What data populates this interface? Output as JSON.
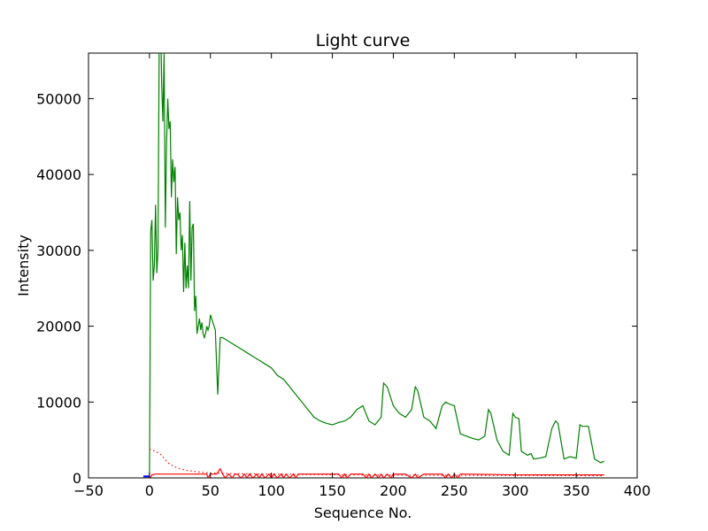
{
  "chart_data": {
    "type": "line",
    "title": "Light curve",
    "xlabel": "Sequence No.",
    "ylabel": "Intensity",
    "xlim": [
      -50,
      400
    ],
    "ylim": [
      0,
      56000
    ],
    "x_ticks": [
      -50,
      0,
      50,
      100,
      150,
      200,
      250,
      300,
      350,
      400
    ],
    "y_ticks": [
      0,
      10000,
      20000,
      30000,
      40000,
      50000
    ],
    "grid": false,
    "legend": "none",
    "series": [
      {
        "color": "#008000",
        "style": "solid",
        "x": [
          0,
          1,
          2,
          3,
          4,
          5,
          6,
          7,
          8,
          9,
          10,
          11,
          12,
          13,
          14,
          15,
          16,
          17,
          18,
          19,
          20,
          21,
          22,
          23,
          24,
          25,
          26,
          27,
          28,
          29,
          30,
          31,
          32,
          33,
          34,
          35,
          36,
          37,
          38,
          39,
          40,
          41,
          42,
          43,
          44,
          45,
          46,
          47,
          48,
          49,
          50,
          52,
          54,
          56,
          58,
          60,
          65,
          70,
          75,
          80,
          85,
          90,
          95,
          100,
          105,
          110,
          115,
          120,
          125,
          130,
          135,
          140,
          145,
          150,
          155,
          160,
          165,
          170,
          175,
          180,
          185,
          190,
          192,
          195,
          198,
          200,
          205,
          210,
          215,
          218,
          220,
          225,
          230,
          235,
          240,
          243,
          245,
          250,
          255,
          260,
          265,
          270,
          275,
          278,
          280,
          285,
          290,
          295,
          298,
          300,
          303,
          305,
          310,
          313,
          315,
          320,
          325,
          330,
          333,
          335,
          340,
          345,
          350,
          353,
          355,
          360,
          365,
          370,
          373
        ],
        "values": [
          0,
          32500,
          34000,
          26000,
          28000,
          36000,
          27000,
          30000,
          58000,
          62000,
          52000,
          47000,
          56000,
          33000,
          44000,
          50000,
          46000,
          47000,
          37000,
          42000,
          39000,
          41000,
          29500,
          37000,
          34000,
          35000,
          30000,
          32000,
          24500,
          31000,
          25000,
          28000,
          25000,
          36500,
          26000,
          33000,
          33500,
          22000,
          24000,
          19000,
          20000,
          21000,
          19500,
          20500,
          19000,
          18500,
          19000,
          20000,
          19500,
          20000,
          21500,
          20500,
          19500,
          11000,
          18500,
          18500,
          18000,
          17500,
          17000,
          16500,
          16000,
          15500,
          15000,
          14500,
          13500,
          13000,
          12000,
          11000,
          10000,
          9000,
          8000,
          7500,
          7200,
          7000,
          7300,
          7500,
          8000,
          9000,
          9500,
          7500,
          7000,
          8000,
          12500,
          12000,
          10500,
          9500,
          8500,
          8000,
          9000,
          12000,
          11500,
          8000,
          7500,
          6500,
          9500,
          10000,
          9800,
          9500,
          5800,
          5500,
          5200,
          5000,
          5500,
          9000,
          8500,
          5000,
          3500,
          3000,
          8500,
          8000,
          7800,
          3500,
          3000,
          3200,
          2500,
          2600,
          2800,
          6500,
          7500,
          7200,
          2500,
          2800,
          2600,
          7000,
          6800,
          6800,
          2500,
          2000,
          2200
        ]
      },
      {
        "color": "#ff0000",
        "style": "dotted",
        "x": [
          0,
          5,
          10,
          15,
          20,
          25,
          30,
          35,
          40,
          45,
          50,
          60,
          70,
          80,
          90,
          100,
          110,
          120,
          130,
          140,
          150,
          160,
          170,
          180,
          190,
          200,
          220,
          240,
          260,
          280,
          300,
          320,
          340,
          360,
          373
        ],
        "values": [
          3800,
          3500,
          3000,
          2000,
          1500,
          1200,
          1000,
          900,
          800,
          700,
          650,
          600,
          550,
          550,
          500,
          500,
          480,
          460,
          440,
          430,
          420,
          410,
          400,
          390,
          380,
          370,
          360,
          350,
          340,
          330,
          320,
          310,
          300,
          290,
          280
        ]
      },
      {
        "color": "#ff0000",
        "style": "solid",
        "x": [
          0,
          1,
          2,
          5,
          10,
          20,
          30,
          40,
          47,
          48,
          50,
          55,
          58,
          60,
          62,
          65,
          68,
          70,
          72,
          75,
          78,
          80,
          82,
          85,
          88,
          90,
          92,
          95,
          98,
          100,
          102,
          105,
          108,
          110,
          112,
          115,
          118,
          120,
          122,
          125,
          150,
          155,
          158,
          160,
          162,
          165,
          175,
          178,
          180,
          182,
          185,
          188,
          190,
          192,
          195,
          198,
          200,
          210,
          215,
          218,
          220,
          225,
          240,
          243,
          245,
          248,
          250,
          253,
          255,
          260,
          300,
          340,
          373
        ],
        "values": [
          0,
          100,
          400,
          500,
          500,
          500,
          500,
          500,
          500,
          0,
          500,
          500,
          1200,
          500,
          0,
          500,
          0,
          500,
          500,
          0,
          500,
          0,
          500,
          0,
          500,
          0,
          500,
          0,
          500,
          0,
          500,
          0,
          500,
          0,
          500,
          0,
          500,
          0,
          500,
          500,
          500,
          500,
          0,
          500,
          0,
          500,
          500,
          0,
          500,
          0,
          500,
          0,
          500,
          0,
          500,
          0,
          500,
          500,
          0,
          500,
          0,
          500,
          500,
          0,
          500,
          0,
          500,
          0,
          500,
          500,
          400,
          400,
          400
        ]
      },
      {
        "color": "#0000ff",
        "style": "solid",
        "x": [
          -5,
          -3,
          -1,
          0
        ],
        "values": [
          200,
          200,
          200,
          200
        ]
      }
    ]
  }
}
